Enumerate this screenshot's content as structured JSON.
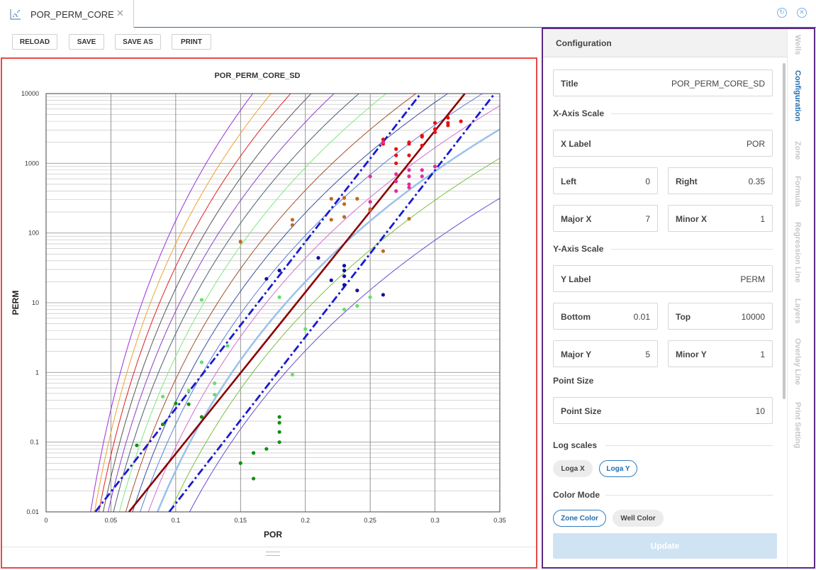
{
  "tab": {
    "label": "POR_PERM_CORE",
    "close": "✕"
  },
  "toolbar": {
    "reload": "RELOAD",
    "save": "SAVE",
    "save_as": "SAVE AS",
    "print": "PRINT"
  },
  "config": {
    "header": "Configuration",
    "title_label": "Title",
    "title_value": "POR_PERM_CORE_SD",
    "x_axis_section": "X-Axis Scale",
    "x_label_label": "X Label",
    "x_label_value": "POR",
    "left_label": "Left",
    "left_value": "0",
    "right_label": "Right",
    "right_value": "0.35",
    "major_x_label": "Major X",
    "major_x_value": "7",
    "minor_x_label": "Minor X",
    "minor_x_value": "1",
    "y_axis_section": "Y-Axis Scale",
    "y_label_label": "Y Label",
    "y_label_value": "PERM",
    "bottom_label": "Bottom",
    "bottom_value": "0.01",
    "top_label": "Top",
    "top_value": "10000",
    "major_y_label": "Major Y",
    "major_y_value": "5",
    "minor_y_label": "Minor Y",
    "minor_y_value": "1",
    "point_size_section": "Point Size",
    "point_size_label": "Point Size",
    "point_size_value": "10",
    "log_scales_section": "Log scales",
    "loga_x": "Loga X",
    "loga_y": "Loga Y",
    "color_mode_section": "Color Mode",
    "zone_color": "Zone Color",
    "well_color": "Well Color",
    "update": "Update"
  },
  "sidebar": {
    "tabs": [
      "Wells",
      "Configuration",
      "Zone",
      "Formula",
      "Regression Line",
      "Layers",
      "Overlay Line",
      "Print Setting"
    ],
    "active": "Configuration"
  },
  "chart_data": {
    "type": "scatter",
    "title": "POR_PERM_CORE_SD",
    "xlabel": "POR",
    "ylabel": "PERM",
    "xlim": [
      0,
      0.35
    ],
    "ylim": [
      0.01,
      10000
    ],
    "y_scale": "log",
    "x_ticks": [
      "0",
      "0.05",
      "0.1",
      "0.15",
      "0.2",
      "0.25",
      "0.3",
      "0.35"
    ],
    "y_ticks": [
      "0.01",
      "0.1",
      "1",
      "10",
      "100",
      "1000",
      "10000"
    ],
    "grid": true,
    "overlay_curves": [
      {
        "color": "#9b30d9",
        "k": 150000000000.0
      },
      {
        "color": "#f0a030",
        "k": 70000000000.0
      },
      {
        "color": "#e02020",
        "k": 33000000000.0
      },
      {
        "color": "#555555",
        "k": 16000000000.0
      },
      {
        "color": "#8a3fc4",
        "k": 7600000000.0
      },
      {
        "color": "#4a6070",
        "k": 3600000000.0
      },
      {
        "color": "#7ee87e",
        "k": 1700000000.0
      },
      {
        "color": "#a0502a",
        "k": 800000000.0
      },
      {
        "color": "#3a4fa0",
        "k": 380000000.0
      },
      {
        "color": "#5a7ed8",
        "k": 180000000.0
      },
      {
        "color": "#d070d0",
        "k": 85000000.0
      },
      {
        "color": "#9cc0ec",
        "k": 39000000.0,
        "width": 2.5
      },
      {
        "color": "#7cc040",
        "k": 15000000.0
      },
      {
        "color": "#6a4ed0",
        "k": 4000000.0
      }
    ],
    "regression_lines": [
      {
        "color": "#8b0000",
        "style": "solid",
        "x": [
          0.064,
          0.323
        ],
        "y": [
          0.01,
          10000
        ]
      },
      {
        "color": "#1a1ad0",
        "style": "dashdot",
        "x": [
          0.038,
          0.289
        ],
        "y": [
          0.01,
          10000
        ]
      },
      {
        "color": "#1a1ad0",
        "style": "dashdot",
        "x": [
          0.095,
          0.346
        ],
        "y": [
          0.01,
          10000
        ]
      }
    ],
    "series": [
      {
        "color": "#e81010",
        "points": [
          [
            0.26,
            2200
          ],
          [
            0.26,
            1900
          ],
          [
            0.27,
            1600
          ],
          [
            0.27,
            1300
          ],
          [
            0.28,
            1900
          ],
          [
            0.28,
            1300
          ],
          [
            0.29,
            2500
          ],
          [
            0.29,
            1800
          ],
          [
            0.3,
            3800
          ],
          [
            0.3,
            3100
          ],
          [
            0.3,
            2800
          ],
          [
            0.31,
            4500
          ],
          [
            0.31,
            3800
          ],
          [
            0.31,
            3500
          ],
          [
            0.32,
            4000
          ],
          [
            0.27,
            1000
          ],
          [
            0.28,
            2000
          ],
          [
            0.29,
            2400
          ]
        ]
      },
      {
        "color": "#e8289a",
        "points": [
          [
            0.25,
            650
          ],
          [
            0.25,
            280
          ],
          [
            0.26,
            2000
          ],
          [
            0.27,
            700
          ],
          [
            0.27,
            550
          ],
          [
            0.27,
            400
          ],
          [
            0.28,
            800
          ],
          [
            0.28,
            650
          ],
          [
            0.28,
            500
          ],
          [
            0.28,
            450
          ],
          [
            0.29,
            800
          ],
          [
            0.29,
            650
          ],
          [
            0.3,
            900
          ],
          [
            0.25,
            210
          ]
        ]
      },
      {
        "color": "#c06a1a",
        "points": [
          [
            0.15,
            75
          ],
          [
            0.19,
            155
          ],
          [
            0.19,
            130
          ],
          [
            0.22,
            310
          ],
          [
            0.22,
            155
          ],
          [
            0.23,
            320
          ],
          [
            0.23,
            260
          ],
          [
            0.23,
            170
          ],
          [
            0.24,
            310
          ],
          [
            0.25,
            220
          ],
          [
            0.26,
            55
          ],
          [
            0.28,
            160
          ]
        ]
      },
      {
        "color": "#1010a0",
        "points": [
          [
            0.17,
            22
          ],
          [
            0.18,
            29
          ],
          [
            0.21,
            44
          ],
          [
            0.22,
            21
          ],
          [
            0.23,
            34
          ],
          [
            0.23,
            29
          ],
          [
            0.23,
            24
          ],
          [
            0.23,
            18
          ],
          [
            0.24,
            15
          ],
          [
            0.26,
            13
          ]
        ]
      },
      {
        "color": "#66e066",
        "points": [
          [
            0.12,
            11
          ],
          [
            0.12,
            1.4
          ],
          [
            0.13,
            0.7
          ],
          [
            0.13,
            0.48
          ],
          [
            0.09,
            0.45
          ],
          [
            0.11,
            0.55
          ],
          [
            0.14,
            2.4
          ],
          [
            0.18,
            12
          ],
          [
            0.2,
            4.2
          ],
          [
            0.19,
            0.93
          ],
          [
            0.23,
            8
          ],
          [
            0.24,
            9
          ],
          [
            0.25,
            12
          ]
        ]
      },
      {
        "color": "#109010",
        "points": [
          [
            0.07,
            0.09
          ],
          [
            0.09,
            0.18
          ],
          [
            0.1,
            0.36
          ],
          [
            0.11,
            0.35
          ],
          [
            0.12,
            0.23
          ],
          [
            0.15,
            0.05
          ],
          [
            0.16,
            0.07
          ],
          [
            0.16,
            0.03
          ],
          [
            0.17,
            0.08
          ],
          [
            0.18,
            0.23
          ],
          [
            0.18,
            0.19
          ],
          [
            0.18,
            0.14
          ],
          [
            0.18,
            0.1
          ]
        ]
      }
    ]
  }
}
